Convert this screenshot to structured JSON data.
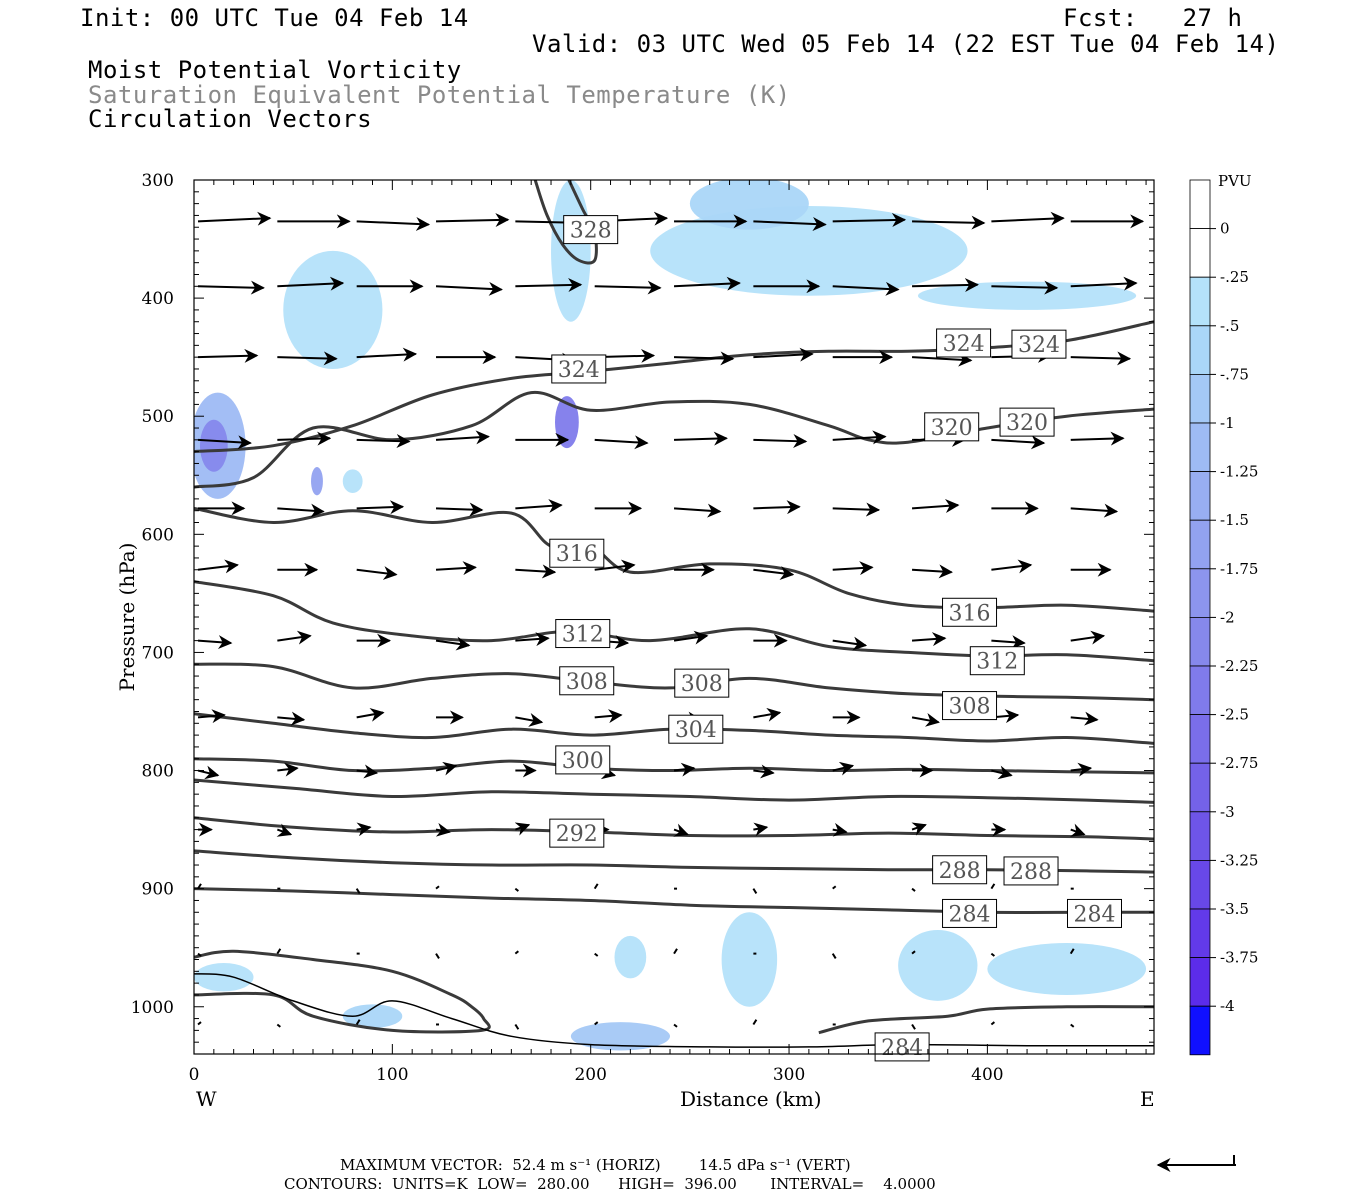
{
  "header": {
    "init": "Init: 00 UTC Tue 04 Feb 14",
    "fcst": "Fcst:   27 h",
    "valid": "Valid: 03 UTC Wed 05 Feb 14 (22 EST Tue 04 Feb 14)"
  },
  "titles": {
    "line1": "Moist Potential Vorticity",
    "line2": "Saturation Equivalent Potential Temperature (K)",
    "line3": "Circulation Vectors"
  },
  "footer": {
    "max_vector": "MAXIMUM VECTOR:  52.4 m s⁻¹ (HORIZ)        14.5 dPa s⁻¹ (VERT)",
    "contours": "CONTOURS:  UNITS=K  LOW=  280.00      HIGH=  396.00       INTERVAL=    4.0000"
  },
  "chart_data": {
    "type": "contour",
    "xlabel": "Distance (km)",
    "ylabel": "Pressure (hPa)",
    "xlim": [
      0,
      484
    ],
    "ylim": [
      1040,
      300
    ],
    "x_ticks": [
      "0",
      "100",
      "200",
      "300",
      "400"
    ],
    "y_ticks": [
      "300",
      "400",
      "500",
      "600",
      "700",
      "800",
      "900",
      "1000"
    ],
    "x_end_labels": {
      "left": "W",
      "right": "E"
    },
    "colorbar": {
      "unit": "PVU",
      "labels": [
        "0",
        "-.25",
        "-.5",
        "-.75",
        "-1",
        "-1.25",
        "-1.5",
        "-1.75",
        "-2",
        "-2.25",
        "-2.5",
        "-2.75",
        "-3",
        "-3.25",
        "-3.5",
        "-3.75",
        "-4"
      ],
      "colors": [
        "#ffffff",
        "#ffffff",
        "#b4e2fa",
        "#aad6f8",
        "#a4c8f6",
        "#9ebbf4",
        "#98aef2",
        "#92a2f0",
        "#8c95ee",
        "#8688ec",
        "#807beb",
        "#7a6eea",
        "#7462e8",
        "#6e55e8",
        "#6848e8",
        "#623ae9",
        "#5c2cea",
        "#1010ff"
      ]
    },
    "contour_labels": [
      {
        "text": "328",
        "x": 200,
        "y": 342
      },
      {
        "text": "324",
        "x": 194,
        "y": 460
      },
      {
        "text": "324",
        "x": 388,
        "y": 438
      },
      {
        "text": "324",
        "x": 426,
        "y": 439
      },
      {
        "text": "320",
        "x": 382,
        "y": 509
      },
      {
        "text": "320",
        "x": 420,
        "y": 505
      },
      {
        "text": "316",
        "x": 193,
        "y": 616
      },
      {
        "text": "316",
        "x": 391,
        "y": 666
      },
      {
        "text": "312",
        "x": 196,
        "y": 684
      },
      {
        "text": "312",
        "x": 405,
        "y": 707
      },
      {
        "text": "308",
        "x": 198,
        "y": 724
      },
      {
        "text": "308",
        "x": 256,
        "y": 726
      },
      {
        "text": "308",
        "x": 391,
        "y": 745
      },
      {
        "text": "304",
        "x": 253,
        "y": 765
      },
      {
        "text": "300",
        "x": 196,
        "y": 791
      },
      {
        "text": "292",
        "x": 193,
        "y": 853
      },
      {
        "text": "288",
        "x": 386,
        "y": 884
      },
      {
        "text": "288",
        "x": 422,
        "y": 885
      },
      {
        "text": "284",
        "x": 391,
        "y": 921
      },
      {
        "text": "284",
        "x": 454,
        "y": 921
      },
      {
        "text": "284",
        "x": 357,
        "y": 1034
      }
    ],
    "isentropes": [
      {
        "value": 328,
        "x": [
          172,
          178,
          186,
          194,
          202,
          202,
          196,
          189
        ],
        "y": [
          300,
          330,
          355,
          368,
          368,
          345,
          325,
          300
        ]
      },
      {
        "value": 324,
        "x": [
          0,
          40,
          80,
          120,
          160,
          200,
          240,
          280,
          320,
          360,
          400,
          440,
          484
        ],
        "y": [
          530,
          525,
          508,
          482,
          468,
          462,
          455,
          448,
          445,
          445,
          442,
          436,
          420
        ]
      },
      {
        "value": 320,
        "x": [
          0,
          30,
          60,
          100,
          140,
          170,
          200,
          240,
          280,
          320,
          340,
          360,
          400,
          440,
          484
        ],
        "y": [
          560,
          552,
          510,
          520,
          508,
          480,
          495,
          488,
          490,
          508,
          520,
          522,
          510,
          500,
          494
        ]
      },
      {
        "value": 316,
        "x": [
          0,
          40,
          80,
          120,
          160,
          180,
          200,
          220,
          260,
          300,
          330,
          360,
          400,
          440,
          484
        ],
        "y": [
          578,
          590,
          580,
          590,
          582,
          610,
          610,
          632,
          625,
          630,
          650,
          660,
          662,
          660,
          665
        ]
      },
      {
        "value": 312,
        "x": [
          0,
          40,
          70,
          110,
          150,
          190,
          230,
          280,
          320,
          360,
          400,
          440,
          484
        ],
        "y": [
          640,
          652,
          675,
          686,
          690,
          682,
          690,
          680,
          695,
          700,
          703,
          702,
          707
        ]
      },
      {
        "value": 308,
        "x": [
          0,
          40,
          80,
          120,
          160,
          200,
          240,
          280,
          320,
          360,
          400,
          440,
          484
        ],
        "y": [
          710,
          712,
          730,
          722,
          718,
          725,
          730,
          722,
          730,
          735,
          737,
          738,
          740
        ]
      },
      {
        "value": 304,
        "x": [
          0,
          40,
          80,
          120,
          160,
          200,
          240,
          280,
          320,
          360,
          400,
          440,
          484
        ],
        "y": [
          752,
          760,
          768,
          772,
          765,
          770,
          765,
          766,
          770,
          772,
          775,
          772,
          777
        ]
      },
      {
        "value": 300,
        "x": [
          0,
          40,
          80,
          120,
          160,
          200,
          240,
          280,
          320,
          360,
          400,
          440,
          484
        ],
        "y": [
          790,
          792,
          800,
          798,
          792,
          798,
          800,
          798,
          800,
          799,
          800,
          801,
          802
        ]
      },
      {
        "value": 296,
        "x": [
          0,
          50,
          100,
          150,
          200,
          250,
          300,
          350,
          400,
          450,
          484
        ],
        "y": [
          808,
          815,
          822,
          818,
          820,
          822,
          825,
          822,
          823,
          825,
          827
        ]
      },
      {
        "value": 292,
        "x": [
          0,
          50,
          100,
          150,
          200,
          250,
          300,
          350,
          400,
          450,
          484
        ],
        "y": [
          840,
          848,
          852,
          850,
          852,
          855,
          855,
          853,
          855,
          856,
          858
        ]
      },
      {
        "value": 288,
        "x": [
          0,
          50,
          100,
          150,
          200,
          250,
          300,
          350,
          400,
          450,
          484
        ],
        "y": [
          868,
          874,
          878,
          880,
          880,
          882,
          883,
          884,
          884,
          885,
          886
        ]
      },
      {
        "value": 284,
        "x": [
          0,
          50,
          100,
          150,
          200,
          250,
          300,
          350,
          400,
          450,
          484
        ],
        "y": [
          900,
          902,
          905,
          908,
          910,
          914,
          916,
          918,
          920,
          920,
          920
        ]
      },
      {
        "value": 284,
        "x": [
          315,
          340,
          380,
          400,
          440,
          484
        ],
        "y": [
          1022,
          1012,
          1008,
          1002,
          1000,
          1000
        ]
      },
      {
        "value": 280,
        "x": [
          0,
          20,
          60,
          100,
          130,
          140,
          146,
          145,
          100,
          60,
          40,
          0
        ],
        "y": [
          958,
          953,
          960,
          970,
          990,
          1000,
          1010,
          1020,
          1020,
          1008,
          990,
          990
        ]
      }
    ],
    "terrain": {
      "x": [
        0,
        20,
        50,
        80,
        100,
        130,
        160,
        200,
        260,
        310,
        360,
        420,
        484
      ],
      "y": [
        972,
        975,
        995,
        1008,
        995,
        1010,
        1025,
        1032,
        1034,
        1034,
        1032,
        1033,
        1033
      ]
    },
    "pv_patches": [
      {
        "x": 12,
        "y": 525,
        "rx": 14,
        "ry": 45,
        "level": 4
      },
      {
        "x": 10,
        "y": 525,
        "rx": 7,
        "ry": 22,
        "level": 8
      },
      {
        "x": 70,
        "y": 410,
        "rx": 25,
        "ry": 50,
        "level": 1
      },
      {
        "x": 190,
        "y": 360,
        "rx": 10,
        "ry": 60,
        "level": 1
      },
      {
        "x": 188,
        "y": 505,
        "rx": 6,
        "ry": 22,
        "level": 9
      },
      {
        "x": 310,
        "y": 360,
        "rx": 80,
        "ry": 38,
        "level": 1
      },
      {
        "x": 280,
        "y": 320,
        "rx": 30,
        "ry": 22,
        "level": 2
      },
      {
        "x": 420,
        "y": 398,
        "rx": 55,
        "ry": 12,
        "level": 1
      },
      {
        "x": 62,
        "y": 555,
        "rx": 3,
        "ry": 12,
        "level": 6
      },
      {
        "x": 80,
        "y": 555,
        "rx": 5,
        "ry": 10,
        "level": 1
      },
      {
        "x": 440,
        "y": 968,
        "rx": 40,
        "ry": 22,
        "level": 1
      },
      {
        "x": 375,
        "y": 965,
        "rx": 20,
        "ry": 30,
        "level": 1
      },
      {
        "x": 280,
        "y": 960,
        "rx": 14,
        "ry": 40,
        "level": 1
      },
      {
        "x": 215,
        "y": 1025,
        "rx": 25,
        "ry": 12,
        "level": 3
      },
      {
        "x": 90,
        "y": 1008,
        "rx": 15,
        "ry": 10,
        "level": 2
      },
      {
        "x": 15,
        "y": 975,
        "rx": 15,
        "ry": 12,
        "level": 1
      },
      {
        "x": 220,
        "y": 958,
        "rx": 8,
        "ry": 18,
        "level": 1
      }
    ],
    "vectors": {
      "rows": [
        335,
        390,
        450,
        520,
        578,
        630,
        690,
        755,
        800,
        850,
        900,
        955,
        1015
      ],
      "x": [
        0,
        40,
        80,
        120,
        160,
        200,
        240,
        280,
        320,
        360,
        400,
        440
      ],
      "max_horiz": "52.4 m s⁻¹",
      "max_vert": "14.5 dPa s⁻¹"
    }
  }
}
